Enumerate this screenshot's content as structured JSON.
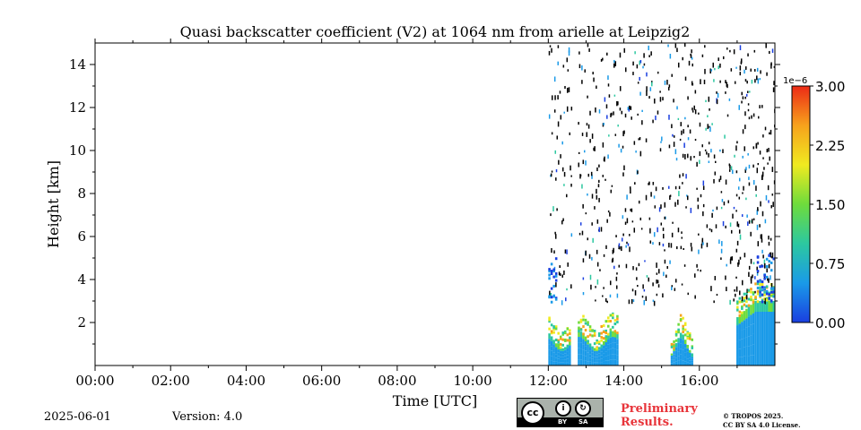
{
  "chart_data": {
    "type": "heatmap",
    "title": "Quasi backscatter coefficient (V2) at 1064 nm from arielle at Leipzig2",
    "xlabel": "Time [UTC]",
    "ylabel": "Height [km]",
    "x_ticks": [
      "00:00",
      "02:00",
      "04:00",
      "06:00",
      "08:00",
      "10:00",
      "12:00",
      "14:00",
      "16:00"
    ],
    "x_range_hours": [
      0,
      18
    ],
    "y_ticks": [
      "2",
      "4",
      "6",
      "8",
      "10",
      "12",
      "14"
    ],
    "y_tick_values": [
      2,
      4,
      6,
      8,
      10,
      12,
      14
    ],
    "y_range_km": [
      0,
      15
    ],
    "colorbar": {
      "multiplier": "1e−6",
      "ticks": [
        "0.00",
        "0.75",
        "1.50",
        "2.25",
        "3.00"
      ],
      "tick_values": [
        0,
        0.75,
        1.5,
        2.25,
        3.0
      ],
      "range": [
        0,
        3.0
      ],
      "colors": [
        "#1a3fe0",
        "#1a9ae8",
        "#2cc8a0",
        "#6edc3c",
        "#f0ea20",
        "#f7a21c",
        "#ec2a16"
      ]
    },
    "data_segments_hours": [
      [
        12.0,
        12.58
      ],
      [
        12.75,
        13.85
      ],
      [
        13.85,
        18.0
      ]
    ],
    "cloud_events_hours": [
      15.5,
      17.2
    ],
    "grid": false,
    "legend": "colorbar-right"
  },
  "footer": {
    "date": "2025-06-01",
    "version": "Version: 4.0",
    "preliminary": "Preliminary\nResults.",
    "copyright": "© TROPOS 2025.\nCC BY SA 4.0 License.",
    "cc_label": "cc",
    "by_label": "BY",
    "sa_label": "SA"
  }
}
